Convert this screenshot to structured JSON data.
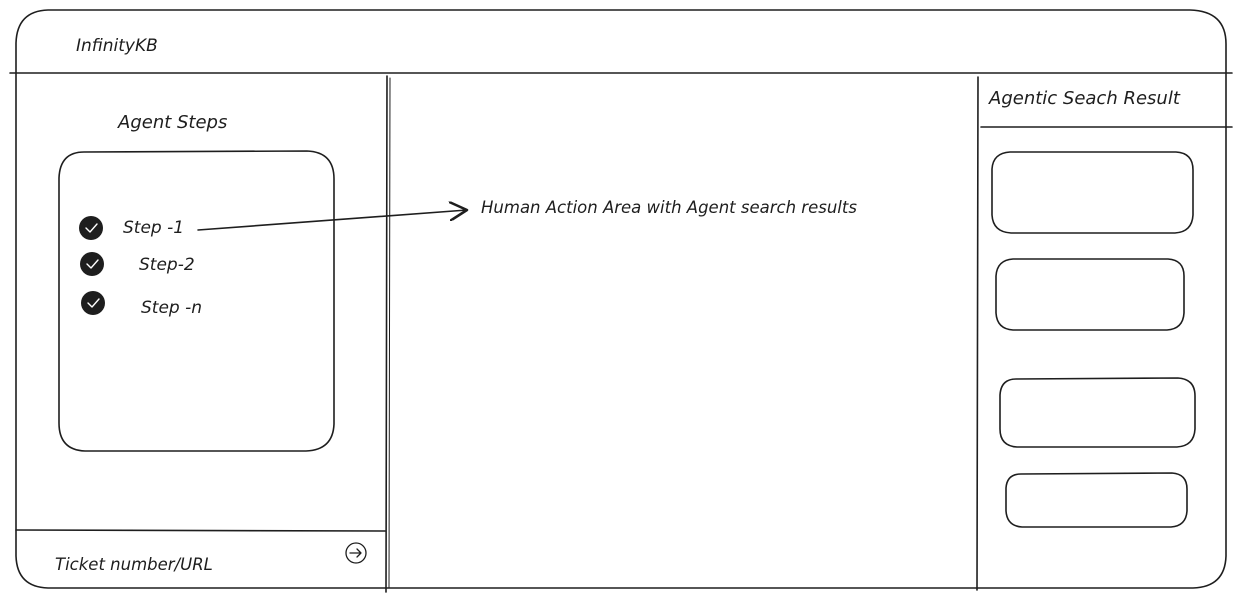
{
  "header": {
    "app_title": "InfinityKB"
  },
  "sidebar": {
    "title": "Agent Steps",
    "steps": [
      {
        "label": "Step -1",
        "status": "completed",
        "icon": "check-circle-icon"
      },
      {
        "label": "Step-2",
        "status": "completed",
        "icon": "check-circle-icon"
      },
      {
        "label": "Step -n",
        "status": "completed",
        "icon": "check-circle-icon"
      }
    ]
  },
  "main": {
    "annotation": "Human Action Area with Agent search results"
  },
  "ticket_input": {
    "label": "Ticket number/URL",
    "submit_icon": "arrow-right-circle-icon"
  },
  "results_panel": {
    "title": "Agentic Seach Result",
    "result_card_count": 4
  },
  "colors": {
    "stroke": "#1e1e1e",
    "background": "#ffffff"
  }
}
